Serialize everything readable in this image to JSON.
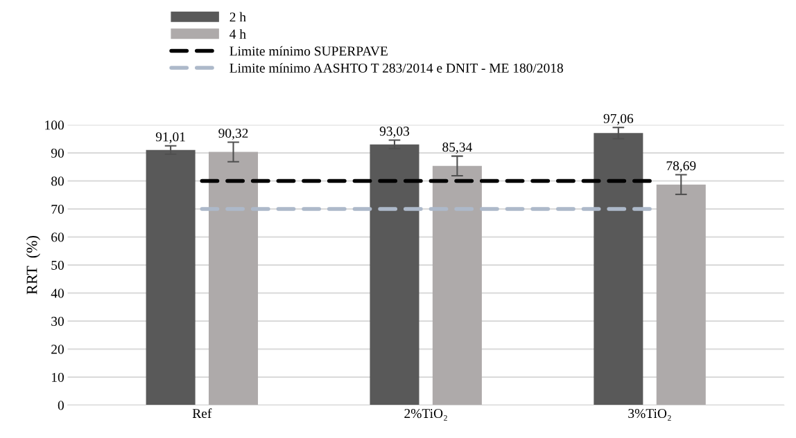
{
  "chart_data": {
    "type": "bar",
    "ylabel": "RRT  (%)",
    "categories": [
      "Ref",
      "2%TiO₂",
      "3%TiO₂"
    ],
    "series": [
      {
        "name": "2 h",
        "color": "#595959",
        "values": [
          91.01,
          93.03,
          97.06
        ],
        "errors": [
          1.5,
          1.5,
          2
        ],
        "value_labels": [
          "91,01",
          "93,03",
          "97,06"
        ]
      },
      {
        "name": "4 h",
        "color": "#aeaaaa",
        "values": [
          90.32,
          85.34,
          78.69
        ],
        "errors": [
          3.5,
          3.5,
          3.5
        ],
        "value_labels": [
          "90,32",
          "85,34",
          "78,69"
        ]
      },
      {
        "name": "Limite mínimo SUPERPAVE",
        "type": "line",
        "color": "#000000",
        "line_style": "dashed",
        "values": [
          80,
          80,
          80
        ]
      },
      {
        "name": "Limite mínimo AASHTO T 283/2014 e DNIT - ME 180/2018",
        "type": "line",
        "color": "#adb9ca",
        "line_style": "dashed",
        "values": [
          70,
          70,
          70
        ]
      }
    ],
    "ylim": [
      0,
      100
    ],
    "yticks": [
      0,
      10,
      20,
      30,
      40,
      50,
      60,
      70,
      80,
      90,
      100
    ],
    "grid": "y",
    "legend": "top"
  }
}
